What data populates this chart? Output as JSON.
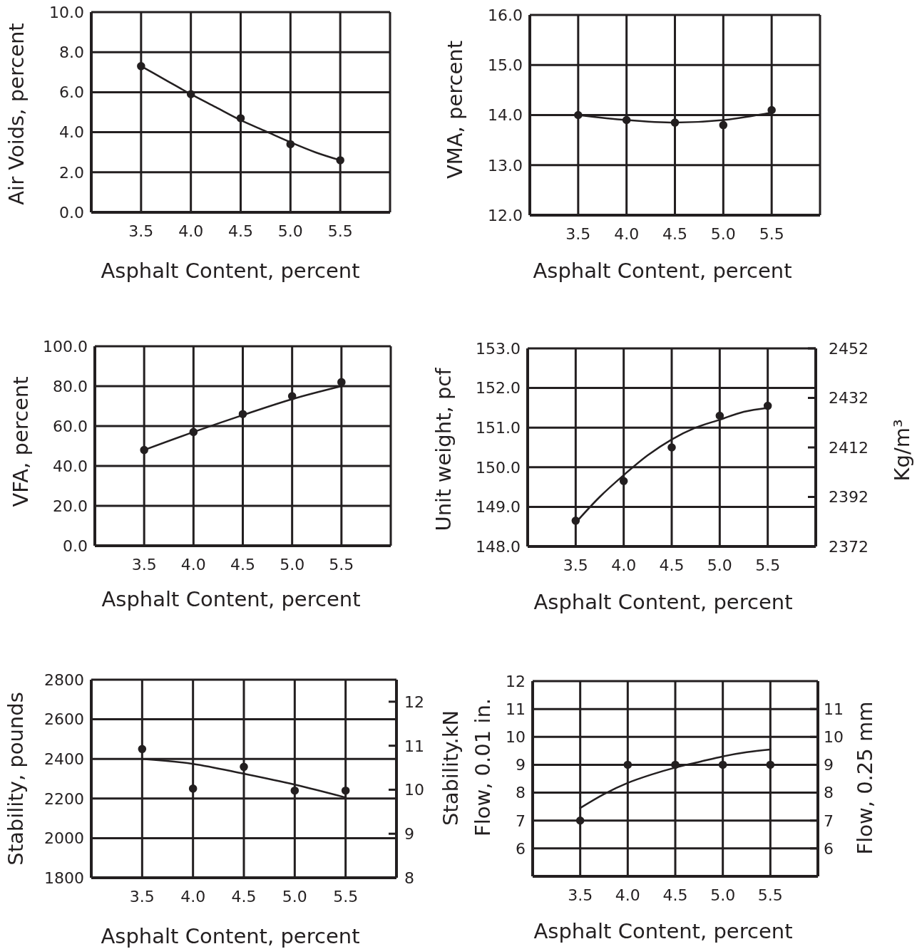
{
  "chart_data": [
    {
      "type": "scatter",
      "xlabel": "Asphalt Content, percent",
      "ylabel": "Air Voids, percent",
      "xlim": [
        3,
        6
      ],
      "xticks": [
        {
          "value": 3,
          "label": null
        },
        3.5,
        {
          "value": 4,
          "label": "4.0"
        },
        4.5,
        {
          "value": 5,
          "label": "5.0"
        },
        5.5,
        {
          "value": 6,
          "label": null
        }
      ],
      "ylim": [
        0,
        10
      ],
      "yticks": [
        {
          "value": 0,
          "label": "0.0"
        },
        {
          "value": 2,
          "label": "2.0"
        },
        {
          "value": 4,
          "label": "4.0"
        },
        {
          "value": 6,
          "label": "6.0"
        },
        {
          "value": 8,
          "label": "8.0"
        },
        {
          "value": 10,
          "label": "10.0"
        }
      ],
      "grid": true,
      "series": [
        {
          "marker": "circle",
          "color": "#231f20",
          "x": [
            3.5,
            4,
            4.5,
            5,
            5.5
          ],
          "values": [
            7.3,
            5.9,
            4.7,
            3.4,
            2.6
          ]
        },
        {
          "type": "line",
          "color": "#231f20",
          "x": [
            3.5,
            3.75,
            4,
            4.25,
            4.5,
            4.75,
            5,
            5.25,
            5.5
          ],
          "values": [
            7.3,
            6.6,
            5.9,
            5.25,
            4.6,
            4.05,
            3.5,
            3.0,
            2.6
          ]
        }
      ]
    },
    {
      "type": "scatter",
      "xlabel": "Asphalt Content, percent",
      "ylabel": "VMA, percent",
      "xlim": [
        3,
        6
      ],
      "xticks": [
        {
          "value": 3,
          "label": null
        },
        3.5,
        {
          "value": 4,
          "label": "4.0"
        },
        4.5,
        {
          "value": 5,
          "label": "5.0"
        },
        5.5,
        {
          "value": 6,
          "label": null
        }
      ],
      "ylim": [
        12,
        16
      ],
      "yticks": [
        {
          "value": 12,
          "label": "12.0"
        },
        {
          "value": 13,
          "label": "13.0"
        },
        {
          "value": 14,
          "label": "14.0"
        },
        {
          "value": 15,
          "label": "15.0"
        },
        {
          "value": 16,
          "label": "16.0"
        }
      ],
      "grid": true,
      "series": [
        {
          "marker": "circle",
          "color": "#231f20",
          "x": [
            3.5,
            4,
            4.5,
            5,
            5.5
          ],
          "values": [
            14.0,
            13.9,
            13.85,
            13.8,
            14.1
          ]
        },
        {
          "type": "line",
          "color": "#231f20",
          "x": [
            3.5,
            4,
            4.5,
            5,
            5.5
          ],
          "values": [
            14.0,
            13.9,
            13.85,
            13.9,
            14.05
          ]
        }
      ]
    },
    {
      "type": "scatter",
      "xlabel": "Asphalt Content, percent",
      "ylabel": "VFA, percent",
      "xlim": [
        3,
        6
      ],
      "xticks": [
        {
          "value": 3,
          "label": null
        },
        3.5,
        {
          "value": 4,
          "label": "4.0"
        },
        4.5,
        {
          "value": 5,
          "label": "5.0"
        },
        5.5,
        {
          "value": 6,
          "label": null
        }
      ],
      "ylim": [
        0,
        100
      ],
      "yticks": [
        {
          "value": 0,
          "label": "0.0"
        },
        {
          "value": 20,
          "label": "20.0"
        },
        {
          "value": 40,
          "label": "40.0"
        },
        {
          "value": 60,
          "label": "60.0"
        },
        {
          "value": 80,
          "label": "80.0"
        },
        {
          "value": 100,
          "label": "100.0"
        }
      ],
      "grid": true,
      "series": [
        {
          "marker": "circle",
          "color": "#231f20",
          "x": [
            3.5,
            4,
            4.5,
            5,
            5.5
          ],
          "values": [
            48,
            57,
            66,
            75,
            82
          ]
        },
        {
          "type": "line",
          "color": "#231f20",
          "x": [
            3.5,
            4,
            4.5,
            5,
            5.5
          ],
          "values": [
            48,
            57,
            65.5,
            73.5,
            80
          ]
        }
      ]
    },
    {
      "type": "scatter",
      "xlabel": "Asphalt Content, percent",
      "ylabel": "Unit weight, pcf",
      "y2label": "Kg/m³",
      "xlim": [
        3,
        6
      ],
      "xticks": [
        {
          "value": 3,
          "label": null
        },
        3.5,
        {
          "value": 4,
          "label": "4.0"
        },
        4.5,
        {
          "value": 5,
          "label": "5.0"
        },
        5.5,
        {
          "value": 6,
          "label": null
        }
      ],
      "ylim": [
        148,
        153
      ],
      "yticks": [
        {
          "value": 148,
          "label": "148.0"
        },
        {
          "value": 149,
          "label": "149.0"
        },
        {
          "value": 150,
          "label": "150.0"
        },
        {
          "value": 151,
          "label": "151.0"
        },
        {
          "value": 152,
          "label": "152.0"
        },
        {
          "value": 153,
          "label": "153.0"
        }
      ],
      "y2lim": [
        2372,
        2452
      ],
      "y2ticks": [
        2372,
        2392,
        2412,
        2432,
        2452
      ],
      "grid": true,
      "series": [
        {
          "marker": "circle",
          "color": "#231f20",
          "x": [
            3.5,
            4,
            4.5,
            5,
            5.5
          ],
          "values": [
            148.65,
            149.65,
            150.5,
            151.3,
            151.55
          ]
        },
        {
          "type": "line",
          "color": "#231f20",
          "x": [
            3.5,
            3.75,
            4,
            4.25,
            4.5,
            4.75,
            5,
            5.25,
            5.5
          ],
          "values": [
            148.6,
            149.25,
            149.8,
            150.3,
            150.7,
            151.0,
            151.2,
            151.4,
            151.5
          ]
        }
      ]
    },
    {
      "type": "scatter",
      "xlabel": "Asphalt Content, percent",
      "ylabel": "Stability, pounds",
      "y2label": "Stability.kN",
      "xlim": [
        3,
        6
      ],
      "xticks": [
        {
          "value": 3,
          "label": null
        },
        3.5,
        {
          "value": 4,
          "label": "4.0"
        },
        4.5,
        {
          "value": 5,
          "label": "5.0"
        },
        5.5,
        {
          "value": 6,
          "label": null
        }
      ],
      "ylim": [
        1800,
        2800
      ],
      "yticks": [
        1800,
        2000,
        2200,
        2400,
        2600,
        2800
      ],
      "y2lim": [
        8,
        12.5
      ],
      "y2ticks": [
        8,
        9,
        10,
        11,
        12
      ],
      "grid": true,
      "series": [
        {
          "marker": "circle",
          "color": "#231f20",
          "x": [
            3.5,
            4,
            4.5,
            5,
            5.5
          ],
          "values": [
            2450,
            2250,
            2360,
            2240,
            2240
          ]
        },
        {
          "type": "line",
          "color": "#231f20",
          "x": [
            3.5,
            4,
            4.5,
            5,
            5.5
          ],
          "values": [
            2400,
            2375,
            2325,
            2270,
            2205
          ]
        }
      ]
    },
    {
      "type": "scatter",
      "xlabel": "Asphalt Content, percent",
      "ylabel": "Flow, 0.01 in.",
      "y2label": "Flow, 0.25 mm",
      "xlim": [
        3,
        6
      ],
      "xticks": [
        {
          "value": 3,
          "label": null
        },
        3.5,
        {
          "value": 4,
          "label": "4.0"
        },
        4.5,
        {
          "value": 5,
          "label": "5.0"
        },
        5.5,
        {
          "value": 6,
          "label": null
        }
      ],
      "ylim": [
        5,
        12
      ],
      "yticks": [
        6,
        7,
        8,
        9,
        10,
        11,
        12
      ],
      "y2lim": [
        5,
        12
      ],
      "y2ticks": [
        6,
        7,
        8,
        9,
        10,
        11
      ],
      "grid": true,
      "series": [
        {
          "marker": "circle",
          "color": "#231f20",
          "x": [
            3.5,
            4,
            4.5,
            5,
            5.5
          ],
          "values": [
            7,
            9,
            9,
            9,
            9
          ]
        },
        {
          "type": "line",
          "color": "#231f20",
          "x": [
            3.5,
            3.75,
            4,
            4.25,
            4.5,
            4.75,
            5,
            5.25,
            5.5
          ],
          "values": [
            7.45,
            7.95,
            8.35,
            8.65,
            8.9,
            9.1,
            9.3,
            9.45,
            9.55
          ]
        }
      ]
    }
  ]
}
